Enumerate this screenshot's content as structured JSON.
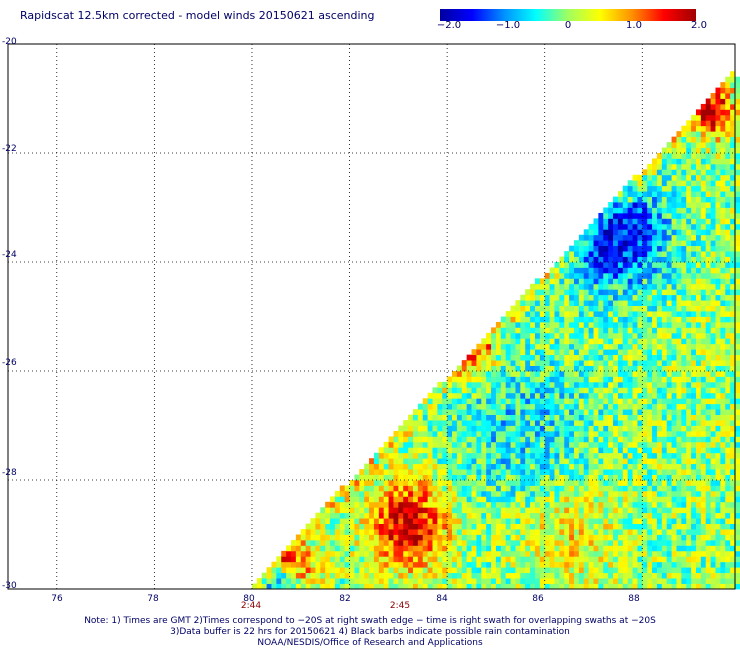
{
  "chart_data": {
    "type": "heatmap",
    "title": "Rapidscat 12.5km corrected - model winds 20150621 ascending",
    "colorbar": {
      "min": -2.0,
      "max": 2.0,
      "tick_values": [
        -2.0,
        -1.0,
        0,
        1.0,
        2.0
      ],
      "tick_labels": [
        "−2.0",
        "−1.0",
        "0",
        "1.0",
        "2.0"
      ],
      "colors": [
        "#0000a0",
        "#0000ff",
        "#0090ff",
        "#00ffff",
        "#a0ff60",
        "#ffff00",
        "#ff9000",
        "#ff0000",
        "#a00000"
      ]
    },
    "x_axis": {
      "range": [
        75,
        89.9
      ],
      "ticks": [
        76,
        78,
        80,
        82,
        84,
        86,
        88
      ],
      "tick_labels": [
        "76",
        "78",
        "80",
        "82",
        "84",
        "86",
        "88"
      ]
    },
    "y_axis": {
      "range": [
        -30,
        -20
      ],
      "ticks": [
        -20,
        -22,
        -24,
        -26,
        -28,
        -30
      ],
      "tick_labels": [
        "-20",
        "-22",
        "-24",
        "-26",
        "-28",
        "-30"
      ]
    },
    "grid": true,
    "swath_edge": [
      [
        79.9,
        -30
      ],
      [
        89.9,
        -20.5
      ]
    ],
    "time_labels": [
      {
        "lon": 80.0,
        "text": "2:44"
      },
      {
        "lon": 83.0,
        "text": "2:45"
      }
    ],
    "features": [
      {
        "lon": 83.2,
        "lat": -28.8,
        "radius_deg": 0.8,
        "value": 1.8
      },
      {
        "lon": 89.5,
        "lat": -21.3,
        "radius_deg": 0.4,
        "value": 1.8
      },
      {
        "lon": 87.5,
        "lat": -23.5,
        "radius_deg": 1.0,
        "value": -1.6
      },
      {
        "lon": 80.6,
        "lat": -29.9,
        "radius_deg": 0.4,
        "value": -1.6
      },
      {
        "lon": 80.8,
        "lat": -29.6,
        "radius_deg": 0.5,
        "value": 1.5
      },
      {
        "lon": 85.5,
        "lat": -27.0,
        "radius_deg": 1.5,
        "value": -0.6
      },
      {
        "lon": 86.5,
        "lat": -29.0,
        "radius_deg": 1.0,
        "value": 0.6
      },
      {
        "lon": 84.5,
        "lat": -25.6,
        "radius_deg": 0.6,
        "value": 1.0
      }
    ],
    "notes": [
      "Note: 1) Times are GMT 2)Times correspond to −20S at right swath edge − time is right swath for overlapping swaths at −20S",
      "3)Data buffer is 22 hrs for 20150621 4) Black barbs indicate possible rain contamination",
      "NOAA/NESDIS/Office of Research and Applications"
    ]
  }
}
